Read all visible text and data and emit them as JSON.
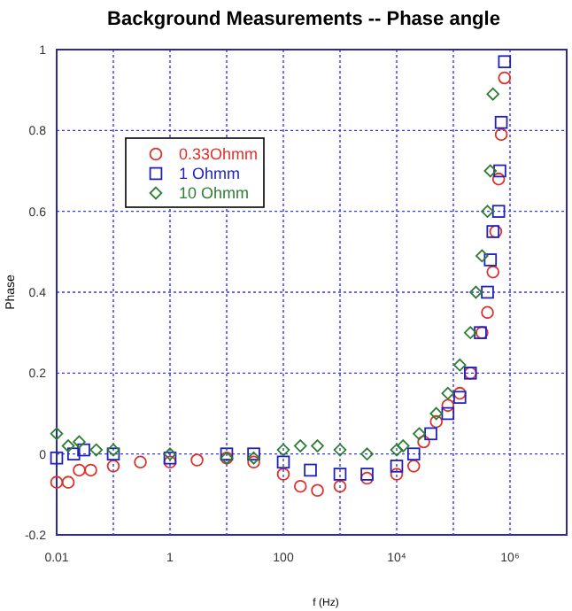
{
  "chart_data": {
    "type": "scatter",
    "title": "Background Measurements -- Phase angle",
    "xlabel": "f (Hz)",
    "ylabel": "Phase",
    "log": "x",
    "grid": true,
    "legend": "top left",
    "xlim": [
      0.01,
      10000000
    ],
    "xticks": [
      {
        "value": 0.01,
        "label": "0.01"
      },
      {
        "value": 0.1,
        "label": null
      },
      1,
      {
        "value": 10,
        "label": null
      },
      100,
      {
        "value": 1000,
        "label": null
      },
      {
        "value": 10000,
        "label": "10⁴"
      },
      {
        "value": 100000,
        "label": null
      },
      {
        "value": 1000000,
        "label": "10⁶"
      }
    ],
    "ylim": [
      -0.2,
      1
    ],
    "yticks": [
      -0.2,
      0,
      0.2,
      0.4,
      0.6,
      0.8,
      1
    ],
    "series": [
      {
        "name": "0.33Ohmm",
        "color": "#e0302a",
        "marker": "circle",
        "x": [
          0.01,
          0.016,
          0.025,
          0.04,
          0.1,
          0.3,
          1,
          3,
          10,
          30,
          100,
          200,
          400,
          1000,
          3000,
          10000,
          20000,
          30000,
          50000,
          80000,
          130000,
          200000,
          320000,
          400000,
          500000,
          560000,
          630000,
          700000,
          800000
        ],
        "values": [
          -0.07,
          -0.07,
          -0.04,
          -0.04,
          -0.03,
          -0.02,
          -0.02,
          -0.015,
          -0.01,
          -0.02,
          -0.05,
          -0.08,
          -0.09,
          -0.08,
          -0.06,
          -0.05,
          -0.03,
          0.03,
          0.08,
          0.12,
          0.15,
          0.2,
          0.3,
          0.35,
          0.45,
          0.55,
          0.68,
          0.79,
          0.93
        ]
      },
      {
        "name": "1 Ohmm",
        "color": "#2020c0",
        "marker": "square",
        "x": [
          0.01,
          0.02,
          0.03,
          0.1,
          1,
          10,
          30,
          100,
          300,
          1000,
          3000,
          10000,
          20000,
          40000,
          80000,
          130000,
          200000,
          300000,
          400000,
          450000,
          500000,
          630000,
          660000,
          700000,
          800000
        ],
        "values": [
          -0.01,
          0,
          0.01,
          0,
          -0.01,
          0,
          0,
          -0.02,
          -0.04,
          -0.05,
          -0.05,
          -0.03,
          0,
          0.05,
          0.1,
          0.14,
          0.2,
          0.3,
          0.4,
          0.48,
          0.55,
          0.6,
          0.7,
          0.82,
          0.97
        ]
      },
      {
        "name": "10 Ohmm",
        "color": "#2e7d32",
        "marker": "diamond",
        "x": [
          0.01,
          0.016,
          0.025,
          0.05,
          0.1,
          1,
          10,
          30,
          100,
          200,
          400,
          1000,
          3000,
          10000,
          13000,
          25000,
          50000,
          80000,
          130000,
          200000,
          250000,
          320000,
          400000,
          450000,
          500000
        ],
        "values": [
          0.05,
          0.02,
          0.03,
          0.01,
          0.01,
          0,
          -0.01,
          -0.01,
          0.01,
          0.02,
          0.02,
          0.01,
          0,
          0.01,
          0.02,
          0.05,
          0.1,
          0.15,
          0.22,
          0.3,
          0.4,
          0.49,
          0.6,
          0.7,
          0.89
        ]
      }
    ]
  }
}
